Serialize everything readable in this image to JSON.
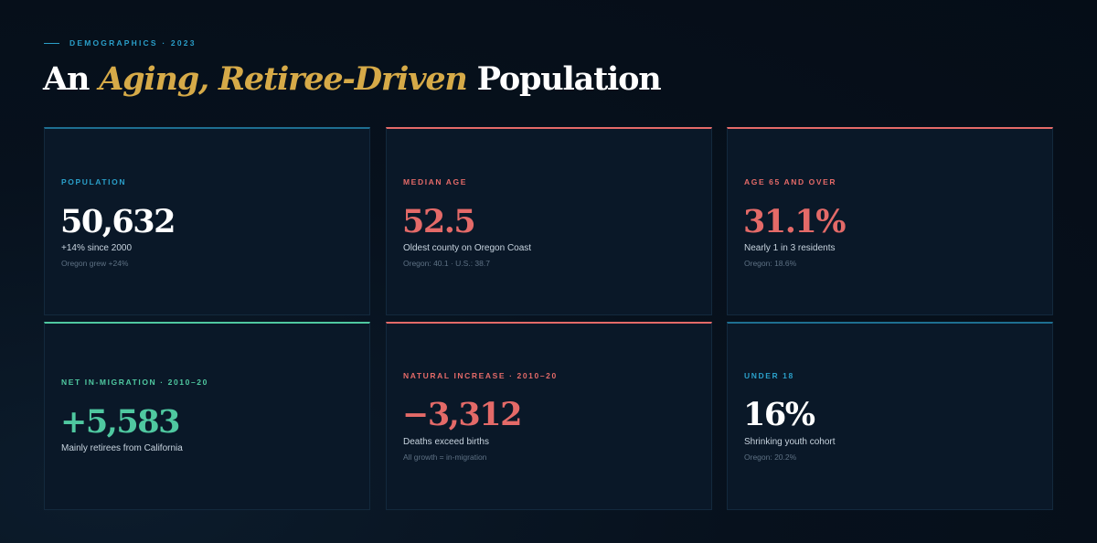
{
  "header": {
    "eyebrow": "DEMOGRAPHICS · 2023",
    "title_lead": "An ",
    "title_accent": "Aging, Retiree-Driven",
    "title_tail": " Population"
  },
  "colors": {
    "background": "#07111d",
    "card": "#0a1828",
    "gold": "#d6aa48",
    "blue": "#2a9fc9",
    "coral": "#e46a68",
    "mint": "#4fc8a0"
  },
  "cards": [
    {
      "label": "POPULATION",
      "value": "50,632",
      "sub": "+14% since 2000",
      "note": "Oregon grew +24%",
      "accent": "blue"
    },
    {
      "label": "MEDIAN AGE",
      "value": "52.5",
      "sub": "Oldest county on Oregon Coast",
      "note": "Oregon: 40.1 · U.S.: 38.7",
      "accent": "coral"
    },
    {
      "label": "AGE 65 AND OVER",
      "value": "31.1%",
      "sub": "Nearly 1 in 3 residents",
      "note": "Oregon: 18.6%",
      "accent": "coral"
    },
    {
      "label": "NET IN-MIGRATION · 2010–20",
      "value": "+5,583",
      "sub": "Mainly retirees from California",
      "accent": "mint"
    },
    {
      "label": "NATURAL INCREASE · 2010–20",
      "value": "−3,312",
      "sub": "Deaths exceed births",
      "note": "All growth = in-migration",
      "accent": "coral"
    },
    {
      "label": "UNDER 18",
      "value": "16%",
      "sub": "Shrinking youth cohort",
      "note": "Oregon: 20.2%",
      "accent": "blue"
    }
  ]
}
